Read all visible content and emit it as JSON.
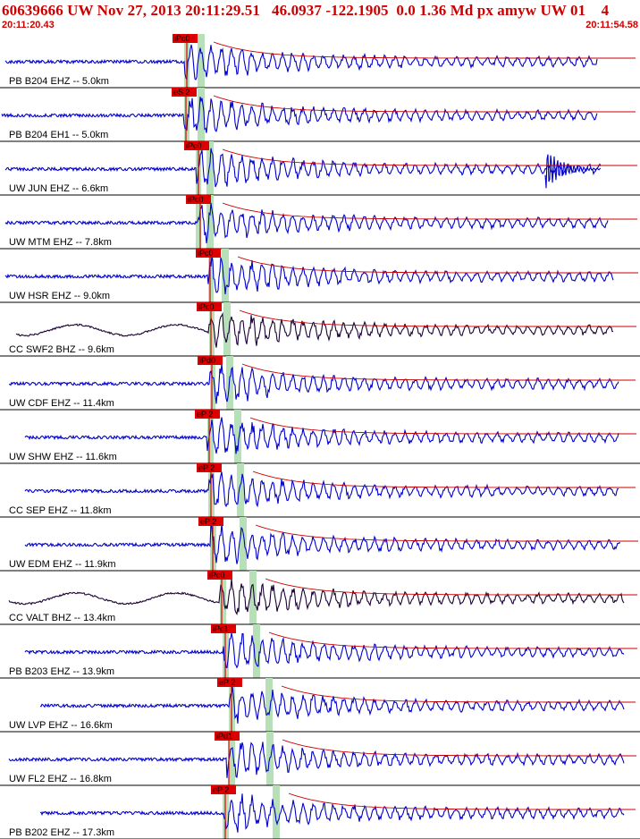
{
  "header": {
    "title": "60639666 UW Nov 27, 2013 20:11:29.51   46.0937 -122.1905  0.0 1.36 Md px amyw UW 01    4",
    "time_start": "20:11:20.43",
    "time_end": "20:11:54.58"
  },
  "colors": {
    "header": "#cc0000",
    "trace_primary": "#0000cc",
    "trace_alt": "#1a0033",
    "pick_box": "#dd0000",
    "window_band": "#b8e0b8",
    "coda": "#cc0000",
    "separator": "#000000"
  },
  "chart_data": {
    "type": "seismogram",
    "time_axis": {
      "start": "20:11:20.43",
      "end": "20:11:54.58"
    },
    "traces": [
      {
        "label": "PB B204 EHZ -- 5.0km",
        "pick": "iPc0",
        "color": "blue",
        "late_event": false
      },
      {
        "label": "PB B204 EH1 -- 5.0km",
        "pick": "eS 2",
        "color": "blue",
        "late_event": false
      },
      {
        "label": "UW JUN EHZ -- 6.6km",
        "pick": "iPc0",
        "color": "blue",
        "late_event": true
      },
      {
        "label": "UW MTM EHZ -- 7.8km",
        "pick": "iPc0",
        "color": "blue",
        "late_event": false
      },
      {
        "label": "UW HSR EHZ -- 9.0km",
        "pick": "iPc0",
        "color": "blue",
        "late_event": false
      },
      {
        "label": "CC SWF2 BHZ -- 9.6km",
        "pick": "iPc0",
        "color": "black",
        "late_event": false
      },
      {
        "label": "UW CDF EHZ -- 11.4km",
        "pick": "iPd0",
        "color": "blue",
        "late_event": false
      },
      {
        "label": "UW SHW EHZ -- 11.6km",
        "pick": "eP 2",
        "color": "blue",
        "late_event": false
      },
      {
        "label": "CC SEP EHZ -- 11.8km",
        "pick": "eP 2",
        "color": "blue",
        "late_event": false
      },
      {
        "label": "UW EDM EHZ -- 11.9km",
        "pick": "eP 2",
        "color": "blue",
        "late_event": false
      },
      {
        "label": "CC VALT BHZ -- 13.4km",
        "pick": "iPc0",
        "color": "black",
        "late_event": false
      },
      {
        "label": "PB B203 EHZ -- 13.9km",
        "pick": "iPc1",
        "color": "blue",
        "late_event": false
      },
      {
        "label": "UW LVP EHZ -- 16.6km",
        "pick": "eP 2",
        "color": "blue",
        "late_event": false
      },
      {
        "label": "UW FL2 EHZ -- 16.8km",
        "pick": "iPd1",
        "color": "blue",
        "late_event": false
      },
      {
        "label": "PB B202 EHZ -- 17.3km",
        "pick": "eP 2",
        "color": "blue",
        "late_event": false
      }
    ]
  }
}
